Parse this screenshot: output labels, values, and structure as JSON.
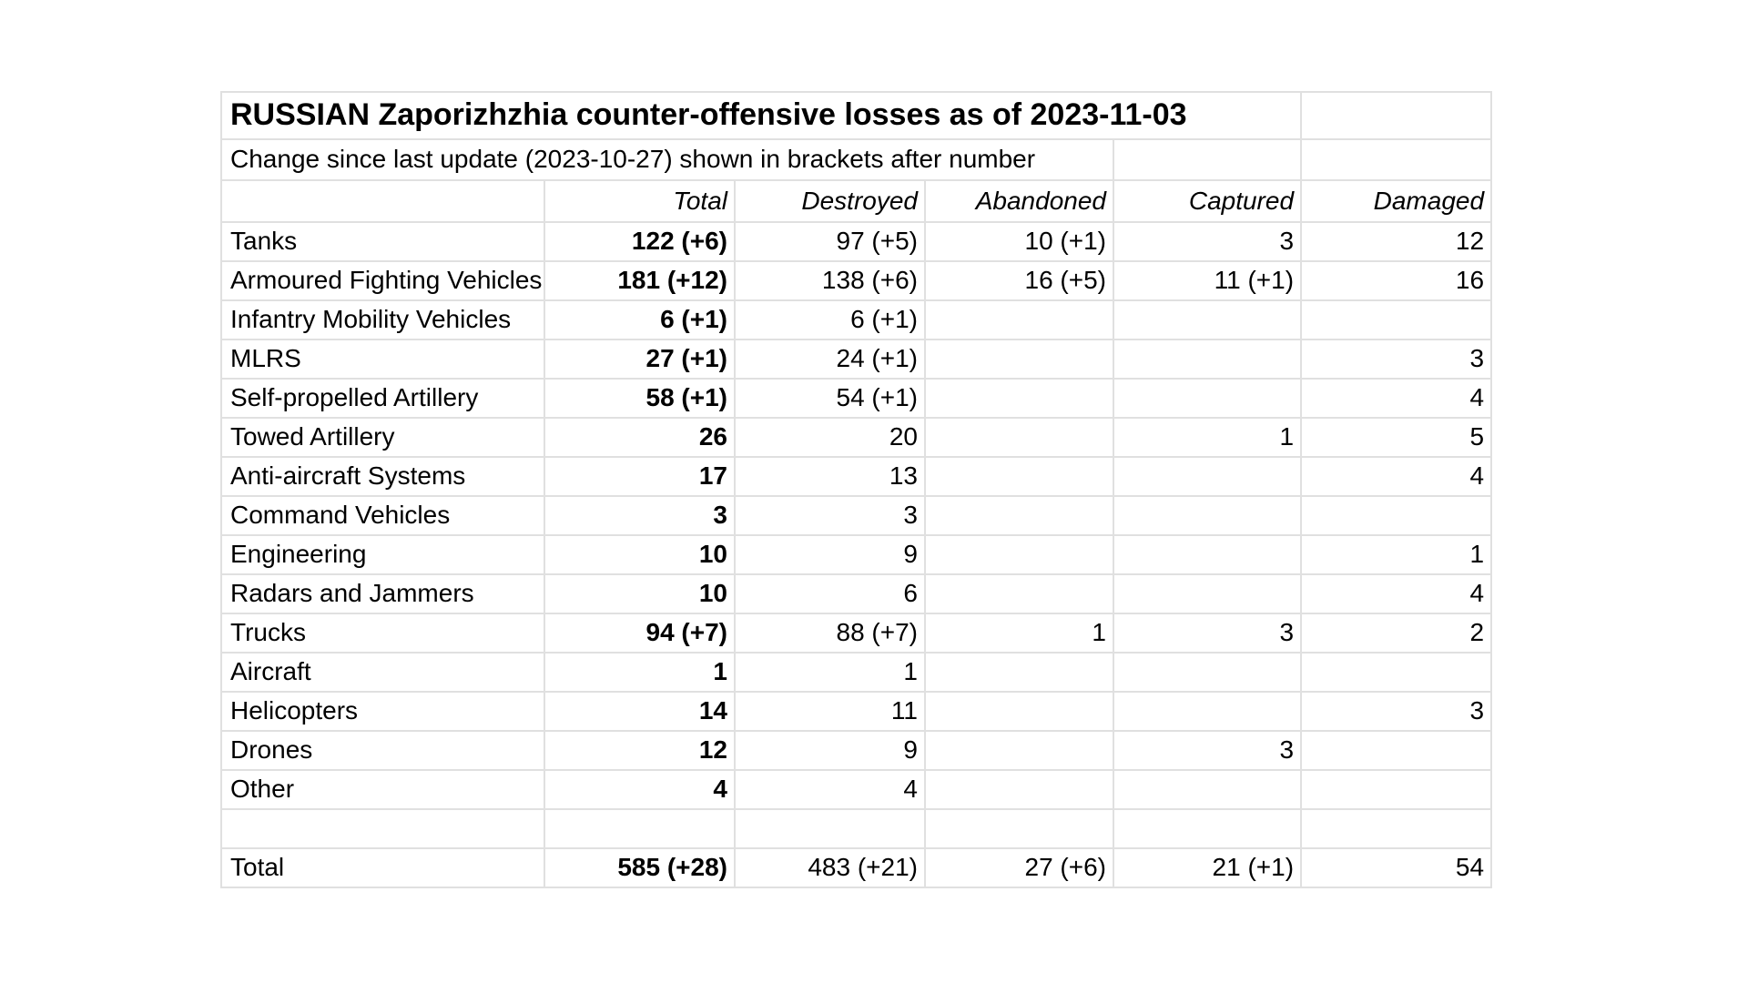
{
  "table": {
    "title": "RUSSIAN Zaporizhzhia counter-offensive losses as of 2023-11-03",
    "subtitle": "Change since last update (2023-10-27) shown in brackets after number",
    "columns": [
      "",
      "Total",
      "Destroyed",
      "Abandoned",
      "Captured",
      "Damaged"
    ],
    "rows": [
      [
        "Tanks",
        "122 (+6)",
        "97 (+5)",
        "10 (+1)",
        "3",
        "12"
      ],
      [
        "Armoured Fighting Vehicles",
        "181 (+12)",
        "138 (+6)",
        "16 (+5)",
        "11 (+1)",
        "16"
      ],
      [
        "Infantry Mobility Vehicles",
        "6 (+1)",
        "6 (+1)",
        "",
        "",
        ""
      ],
      [
        "MLRS",
        "27 (+1)",
        "24 (+1)",
        "",
        "",
        "3"
      ],
      [
        "Self-propelled Artillery",
        "58 (+1)",
        "54 (+1)",
        "",
        "",
        "4"
      ],
      [
        "Towed Artillery",
        "26",
        "20",
        "",
        "1",
        "5"
      ],
      [
        "Anti-aircraft Systems",
        "17",
        "13",
        "",
        "",
        "4"
      ],
      [
        "Command Vehicles",
        "3",
        "3",
        "",
        "",
        ""
      ],
      [
        "Engineering",
        "10",
        "9",
        "",
        "",
        "1"
      ],
      [
        "Radars and Jammers",
        "10",
        "6",
        "",
        "",
        "4"
      ],
      [
        "Trucks",
        "94 (+7)",
        "88 (+7)",
        "1",
        "3",
        "2"
      ],
      [
        "Aircraft",
        "1",
        "1",
        "",
        "",
        ""
      ],
      [
        "Helicopters",
        "14",
        "11",
        "",
        "",
        "3"
      ],
      [
        "Drones",
        "12",
        "9",
        "",
        "3",
        ""
      ],
      [
        "Other",
        "4",
        "4",
        "",
        "",
        ""
      ],
      [
        "",
        "",
        "",
        "",
        "",
        ""
      ],
      [
        "Total",
        "585 (+28)",
        "483 (+21)",
        "27 (+6)",
        "21 (+1)",
        "54"
      ]
    ],
    "column_keys": [
      "label",
      "total",
      "destroyed",
      "abandoned",
      "captured",
      "damaged"
    ],
    "colors": {
      "grid": "#e0e0e0",
      "text": "#000000",
      "background": "#ffffff"
    }
  }
}
